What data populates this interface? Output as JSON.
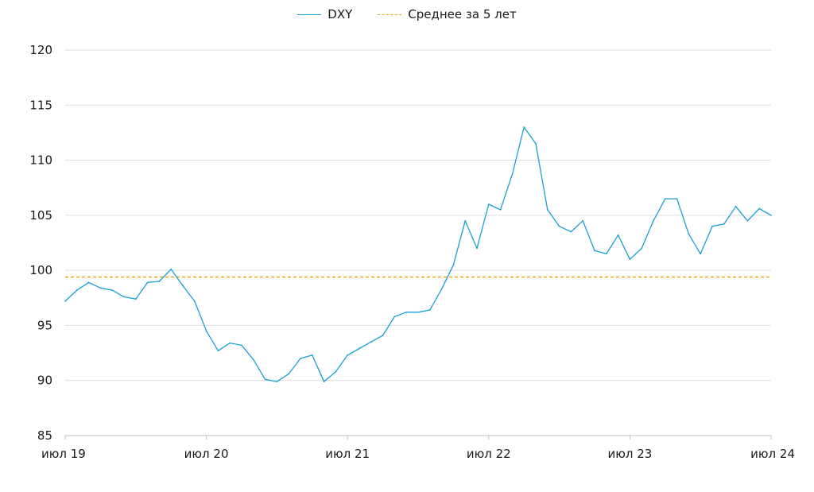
{
  "chart_data": {
    "type": "line",
    "title": "",
    "xlabel": "",
    "ylabel": "",
    "ylim": [
      85,
      120
    ],
    "yticks": [
      85,
      90,
      95,
      100,
      105,
      110,
      115,
      120
    ],
    "xlim": [
      "2019-07",
      "2024-07"
    ],
    "x_tick_labels": [
      "июл 19",
      "июл 20",
      "июл 21",
      "июл 22",
      "июл 23",
      "июл 24"
    ],
    "grid": "horizontal",
    "legend_position": "top-center",
    "series": [
      {
        "name": "DXY",
        "color": "#1aa0d2",
        "style": "solid",
        "x": [
          "2019-07",
          "2019-08",
          "2019-09",
          "2019-10",
          "2019-11",
          "2019-12",
          "2020-01",
          "2020-02",
          "2020-03",
          "2020-04",
          "2020-05",
          "2020-06",
          "2020-07",
          "2020-08",
          "2020-09",
          "2020-10",
          "2020-11",
          "2020-12",
          "2021-01",
          "2021-02",
          "2021-03",
          "2021-04",
          "2021-05",
          "2021-06",
          "2021-07",
          "2021-08",
          "2021-09",
          "2021-10",
          "2021-11",
          "2021-12",
          "2022-01",
          "2022-02",
          "2022-03",
          "2022-04",
          "2022-05",
          "2022-06",
          "2022-07",
          "2022-08",
          "2022-09",
          "2022-10",
          "2022-11",
          "2022-12",
          "2023-01",
          "2023-02",
          "2023-03",
          "2023-04",
          "2023-05",
          "2023-06",
          "2023-07",
          "2023-08",
          "2023-09",
          "2023-10",
          "2023-11",
          "2023-12",
          "2024-01",
          "2024-02",
          "2024-03",
          "2024-04",
          "2024-05",
          "2024-06",
          "2024-07"
        ],
        "values": [
          97.2,
          98.2,
          98.9,
          98.4,
          98.2,
          97.6,
          97.4,
          98.9,
          99.0,
          100.1,
          98.6,
          97.2,
          94.5,
          92.7,
          93.4,
          93.2,
          91.9,
          90.1,
          89.9,
          90.6,
          92.0,
          92.3,
          89.9,
          90.8,
          92.3,
          92.9,
          93.5,
          94.1,
          95.8,
          96.2,
          96.2,
          96.4,
          98.3,
          100.5,
          104.5,
          102.0,
          106.0,
          105.5,
          108.7,
          113.0,
          111.5,
          105.5,
          104.0,
          103.5,
          104.5,
          101.8,
          101.5,
          103.2,
          101.0,
          102.0,
          104.5,
          106.5,
          106.5,
          103.3,
          101.5,
          104.0,
          104.2,
          105.8,
          104.5,
          105.6,
          105.0
        ]
      },
      {
        "name": "Среднее за 5 лет",
        "color": "#e8a317",
        "style": "dashed",
        "constant": 99.4
      }
    ]
  }
}
